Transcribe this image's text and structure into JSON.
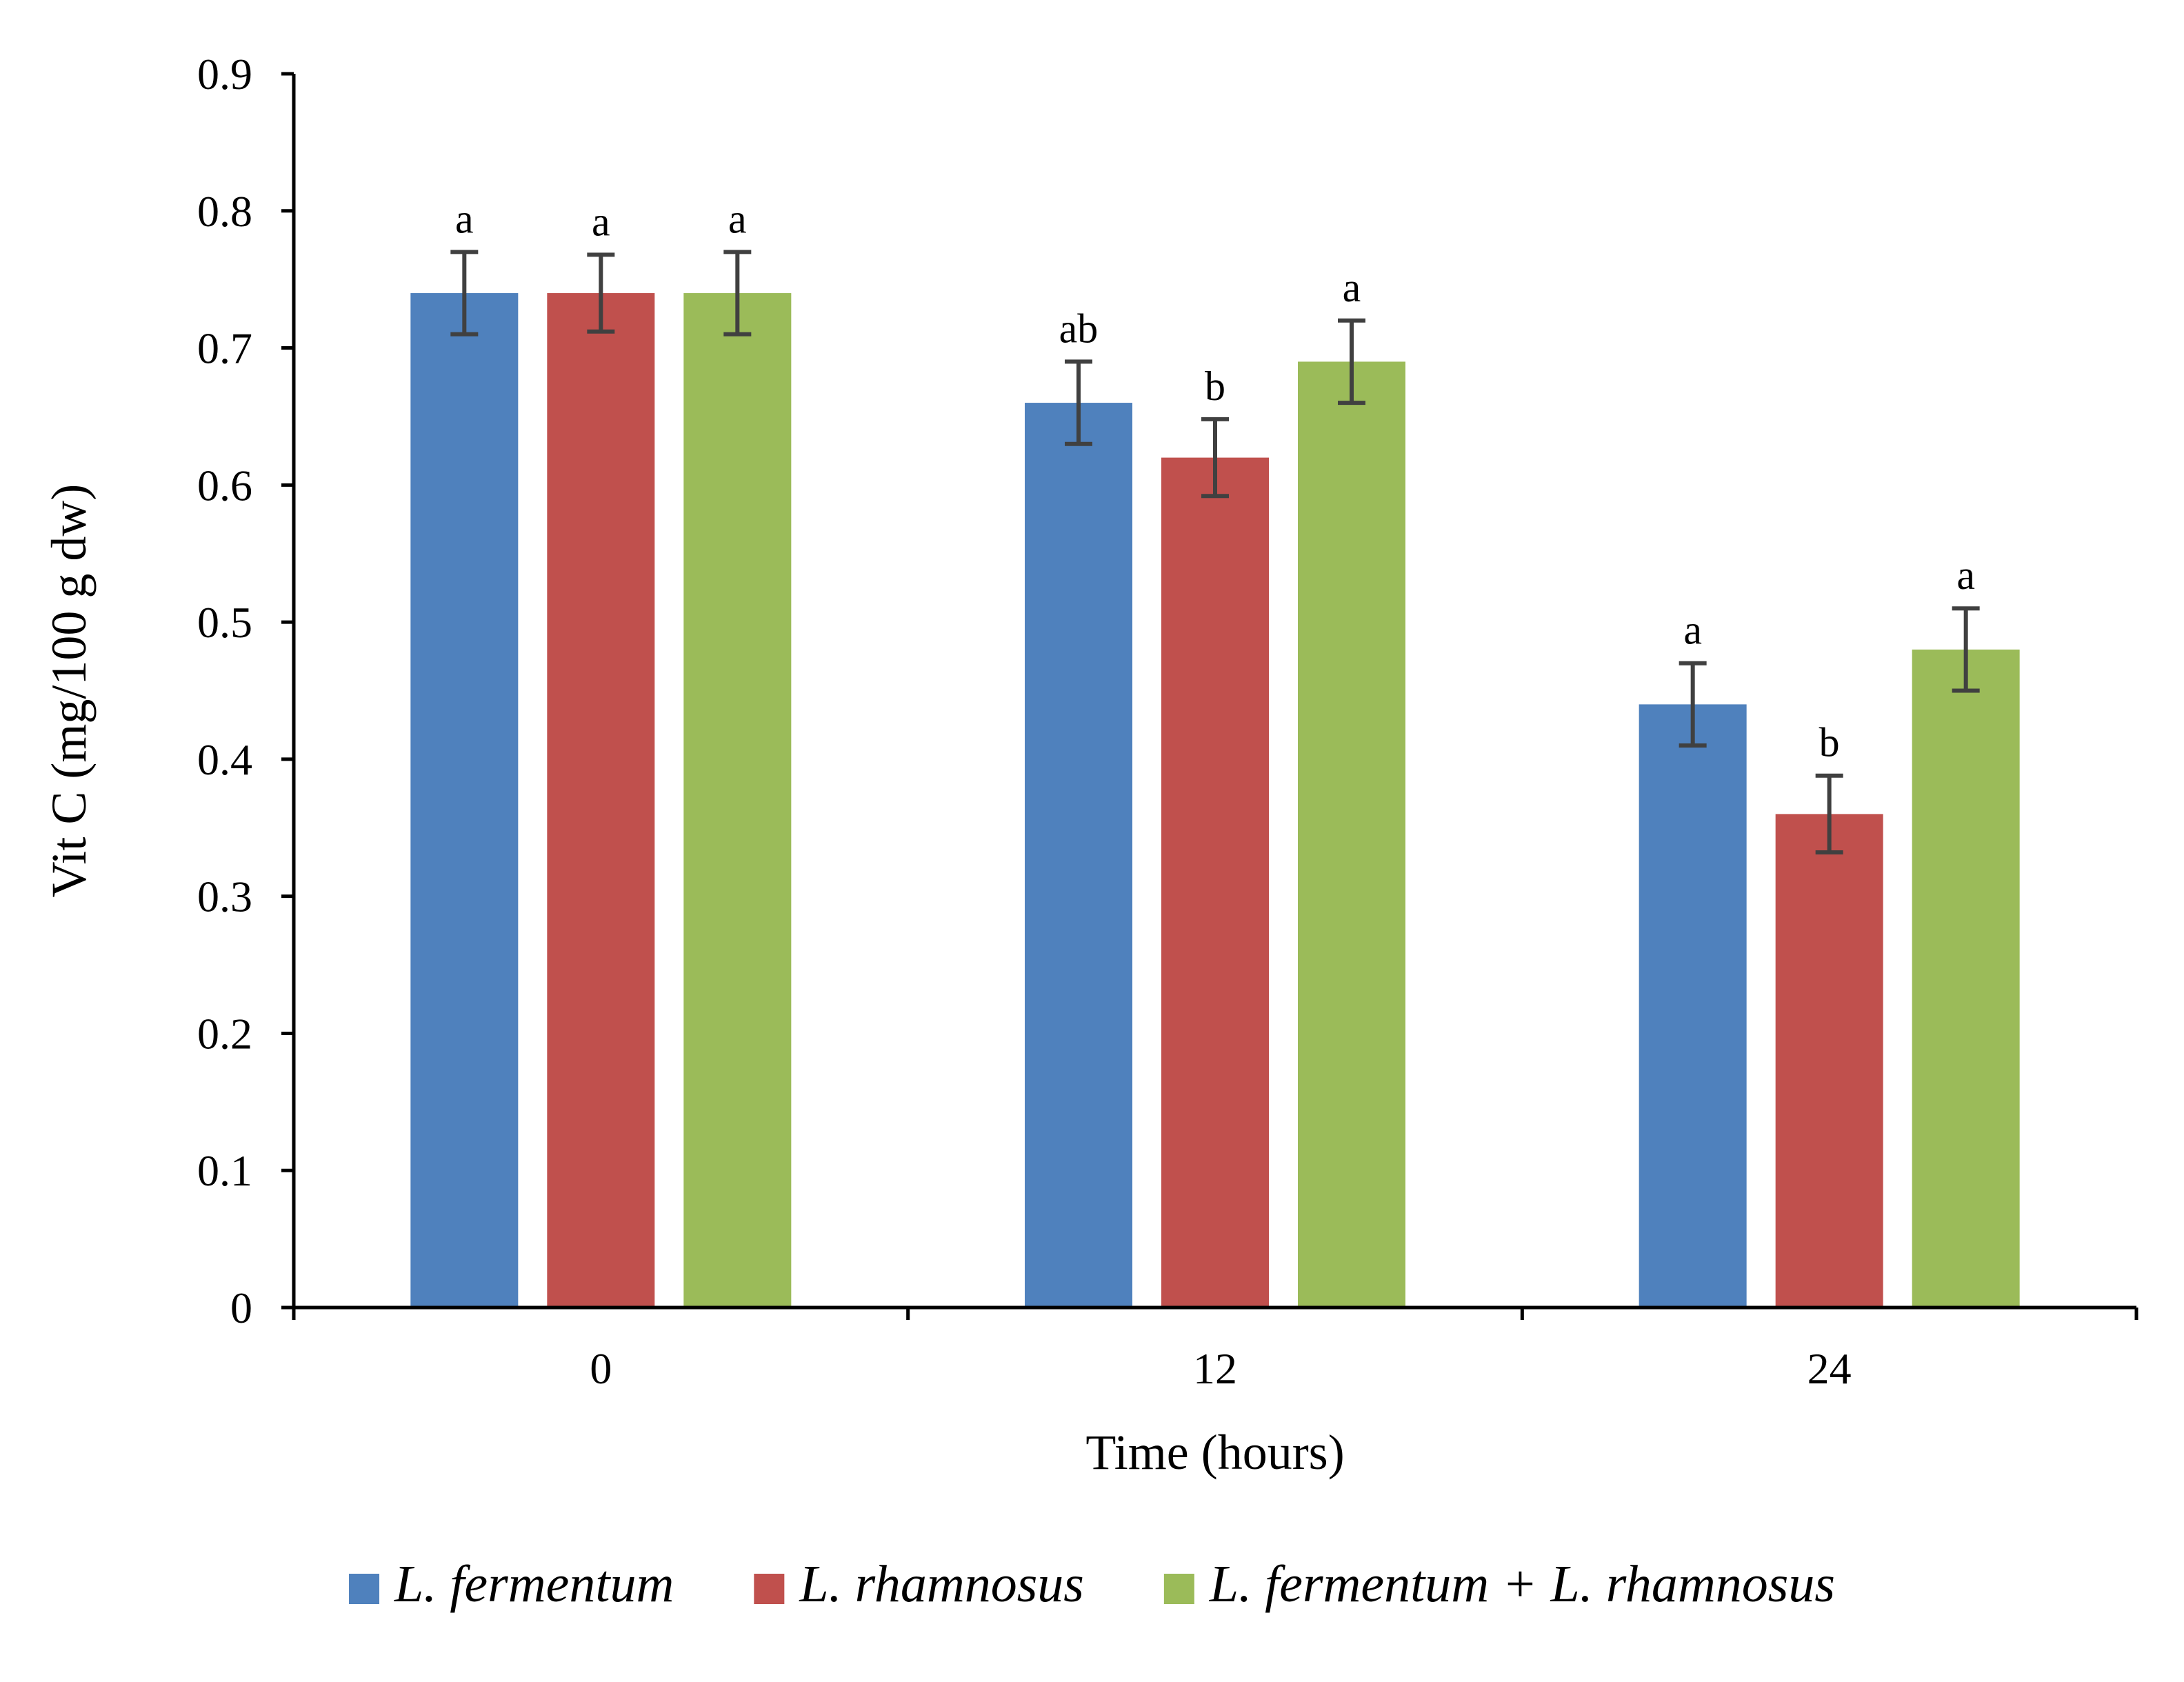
{
  "chart_data": {
    "type": "bar",
    "title": "",
    "xlabel": "Time (hours)",
    "ylabel": "Vit C (mg/100 g dw)",
    "ylim": [
      0,
      0.9
    ],
    "yticks": [
      "0",
      "0.1",
      "0.2",
      "0.3",
      "0.4",
      "0.5",
      "0.6",
      "0.7",
      "0.8",
      "0.9"
    ],
    "categories": [
      "0",
      "12",
      "24"
    ],
    "grid": false,
    "legend_position": "bottom",
    "series": [
      {
        "name": "L. fermentum",
        "color": "#4F81BD",
        "values": [
          0.74,
          0.66,
          0.44
        ],
        "errors": [
          0.03,
          0.03,
          0.03
        ],
        "significance": [
          "a",
          "ab",
          "a"
        ]
      },
      {
        "name": "L. rhamnosus",
        "color": "#C0504D",
        "values": [
          0.74,
          0.62,
          0.36
        ],
        "errors": [
          0.028,
          0.028,
          0.028
        ],
        "significance": [
          "a",
          "b",
          "b"
        ]
      },
      {
        "name": "L. fermentum + L. rhamnosus",
        "color": "#9BBB59",
        "values": [
          0.74,
          0.69,
          0.48
        ],
        "errors": [
          0.03,
          0.03,
          0.03
        ],
        "significance": [
          "a",
          "a",
          "a"
        ]
      }
    ]
  }
}
